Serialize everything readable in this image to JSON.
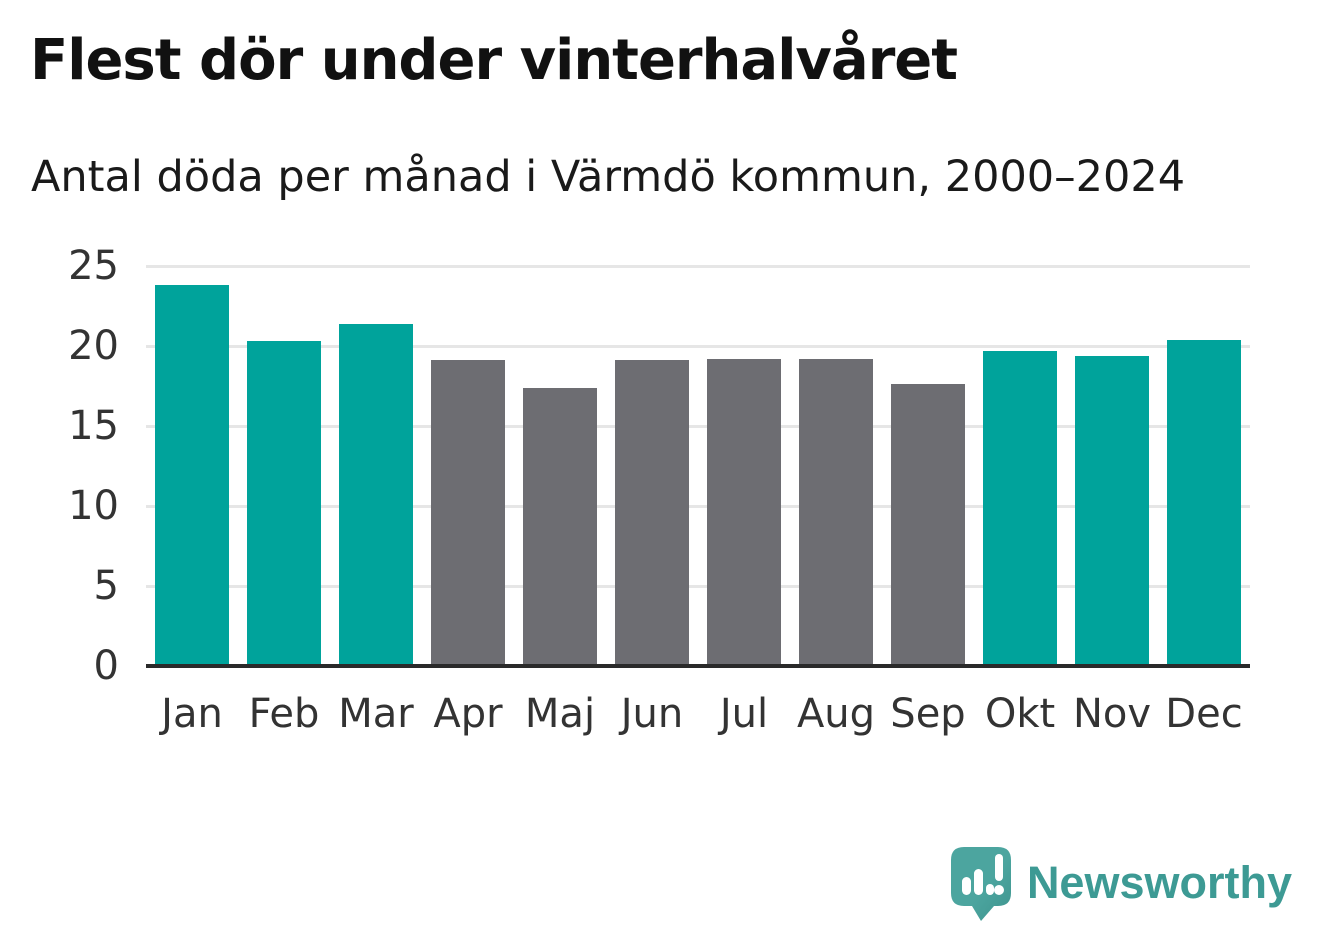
{
  "header": {
    "title": "Flest dör under vinterhalvåret",
    "subtitle": "Antal döda per månad i Värmdö kommun, 2000–2024"
  },
  "chart_data": {
    "type": "bar",
    "title": "Flest dör under vinterhalvåret",
    "subtitle": "Antal döda per månad i Värmdö kommun, 2000–2024",
    "categories": [
      "Jan",
      "Feb",
      "Mar",
      "Apr",
      "Maj",
      "Jun",
      "Jul",
      "Aug",
      "Sep",
      "Okt",
      "Nov",
      "Dec"
    ],
    "values": [
      23.8,
      20.3,
      21.4,
      19.1,
      17.4,
      19.1,
      19.2,
      19.2,
      17.6,
      19.7,
      19.4,
      20.4
    ],
    "highlighted_categories": [
      "Jan",
      "Feb",
      "Mar",
      "Okt",
      "Nov",
      "Dec"
    ],
    "highlight_color": "#00A39B",
    "base_color": "#6D6D72",
    "xlabel": "",
    "ylabel": "",
    "ylim": [
      0,
      25
    ],
    "yticks": [
      0,
      5,
      10,
      15,
      20,
      25
    ],
    "grid": "horizontal",
    "gridline_color": "#e6e6e6",
    "axis_line_color": "#2a2a2a",
    "legend": "none"
  },
  "footer": {
    "brand": "Newsworthy",
    "brand_color": "#3D9A94",
    "logo_icon": "speech-bubble-bar-chart-icon",
    "logo_bubble_color": "#4CA59F"
  }
}
